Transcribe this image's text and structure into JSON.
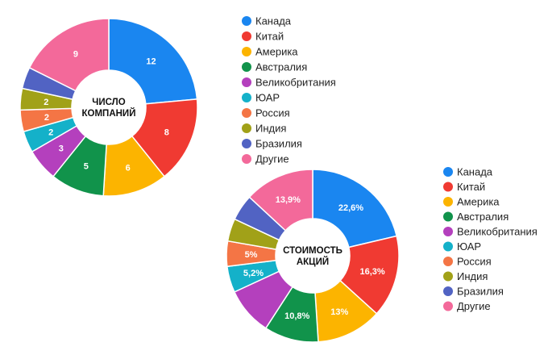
{
  "chart_data": [
    {
      "type": "pie",
      "title": "",
      "center_label": [
        "ЧИСЛО",
        "КОМПАНИЙ"
      ],
      "categories": [
        "Канада",
        "Китай",
        "Америка",
        "Австралия",
        "Великобритания",
        "ЮАР",
        "Россия",
        "Индия",
        "Бразилия",
        "Другие"
      ],
      "values": [
        12,
        8,
        6,
        5,
        3,
        2,
        2,
        2,
        2,
        9
      ],
      "labels": [
        "12",
        "8",
        "6",
        "5",
        "3",
        "2",
        "2",
        "2",
        "",
        "9"
      ],
      "colors": [
        "#1a86f0",
        "#f03a32",
        "#fcb400",
        "#11934b",
        "#b440bd",
        "#14b1c9",
        "#f47545",
        "#a1a118",
        "#5163c3",
        "#f3699a"
      ],
      "legend_position": "right"
    },
    {
      "type": "pie",
      "title": "",
      "center_label": [
        "СТОИМОСТЬ",
        "АКЦИЙ"
      ],
      "categories": [
        "Канада",
        "Китай",
        "Америка",
        "Австралия",
        "Великобритания",
        "ЮАР",
        "Россия",
        "Индия",
        "Бразилия",
        "Другие"
      ],
      "values": [
        22.6,
        16.3,
        13,
        10.8,
        9.5,
        5.2,
        5,
        4.5,
        5.2,
        13.9
      ],
      "labels": [
        "22,6%",
        "16,3%",
        "13%",
        "10,8%",
        "",
        "5,2%",
        "5%",
        "",
        "",
        "13,9%"
      ],
      "colors": [
        "#1a86f0",
        "#f03a32",
        "#fcb400",
        "#11934b",
        "#b440bd",
        "#14b1c9",
        "#f47545",
        "#a1a118",
        "#5163c3",
        "#f3699a"
      ],
      "legend_position": "right"
    }
  ]
}
